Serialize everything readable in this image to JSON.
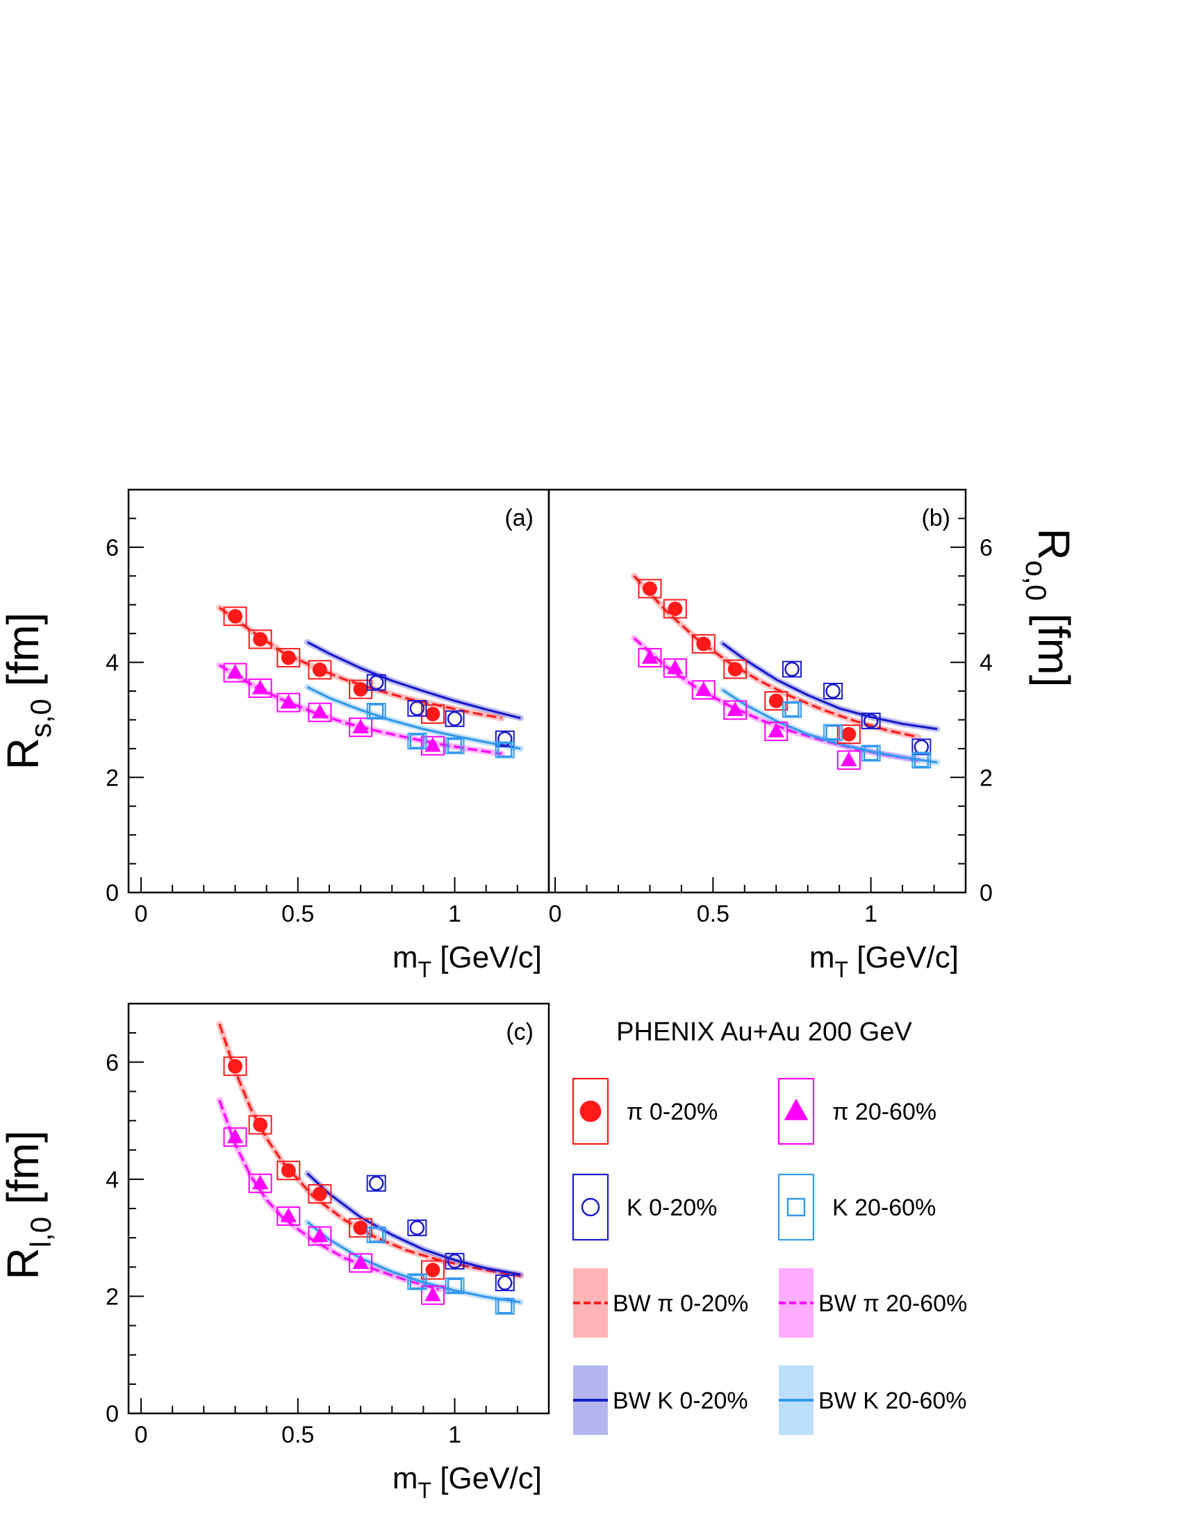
{
  "colors": {
    "pi_central": "#ff1a1a",
    "pi_peripheral": "#ff00ff",
    "k_central": "#1a1acc",
    "k_peripheral": "#3399ee"
  },
  "legend": {
    "header": "PHENIX Au+Au 200 GeV",
    "entries": [
      {
        "label": "π  0-20%",
        "marker": "filled-circle",
        "color": "#ff1a1a"
      },
      {
        "label": "π 20-60%",
        "marker": "filled-triangle",
        "color": "#ff00ff"
      },
      {
        "label": "K  0-20%",
        "marker": "open-circle",
        "color": "#1a1acc"
      },
      {
        "label": "K 20-60%",
        "marker": "open-square",
        "color": "#3399ee"
      },
      {
        "label": "BW  π  0-20%",
        "marker": "band-dashed",
        "color": "#ff1a1a"
      },
      {
        "label": "BW  π 20-60%",
        "marker": "band-dashed",
        "color": "#ff00ff"
      },
      {
        "label": "BW K  0-20%",
        "marker": "band-solid",
        "color": "#1a1acc"
      },
      {
        "label": "BW K 20-60%",
        "marker": "band-solid",
        "color": "#3399ee"
      }
    ]
  },
  "chart_data": [
    {
      "type": "scatter",
      "panel": "(a)",
      "ylabel": "R_{s,0} [fm]",
      "xlabel": "m_T  [GeV/c]",
      "xlim": [
        -0.04,
        1.3
      ],
      "ylim": [
        0,
        7
      ],
      "x_ticks": [
        "0",
        "0.5",
        "1"
      ],
      "y_ticks": [
        "0",
        "2",
        "4",
        "6"
      ],
      "series": [
        {
          "name": "π  0-20%",
          "color": "#ff1a1a",
          "marker": "filled-circle",
          "x": [
            0.3,
            0.38,
            0.47,
            0.57,
            0.7,
            0.93
          ],
          "y": [
            4.8,
            4.4,
            4.08,
            3.87,
            3.53,
            3.1
          ]
        },
        {
          "name": "π 20-60%",
          "color": "#ff00ff",
          "marker": "filled-triangle",
          "x": [
            0.3,
            0.38,
            0.47,
            0.57,
            0.7,
            0.93
          ],
          "y": [
            3.82,
            3.55,
            3.3,
            3.13,
            2.87,
            2.55
          ]
        },
        {
          "name": "K  0-20%",
          "color": "#1a1acc",
          "marker": "open-circle",
          "x": [
            0.75,
            0.88,
            1.0,
            1.16
          ],
          "y": [
            3.65,
            3.2,
            3.02,
            2.67
          ]
        },
        {
          "name": "K 20-60%",
          "color": "#3399ee",
          "marker": "open-square",
          "x": [
            0.75,
            0.88,
            1.0,
            1.16
          ],
          "y": [
            3.15,
            2.63,
            2.55,
            2.48
          ]
        }
      ],
      "curves": [
        {
          "name": "BW  π  0-20%",
          "color": "#ff1a1a",
          "style": "dashed",
          "band": true,
          "x": [
            0.25,
            0.35,
            0.45,
            0.55,
            0.65,
            0.75,
            0.85,
            0.95,
            1.05,
            1.15
          ],
          "y": [
            4.95,
            4.55,
            4.18,
            3.92,
            3.7,
            3.52,
            3.37,
            3.25,
            3.13,
            3.03
          ]
        },
        {
          "name": "BW  π 20-60%",
          "color": "#ff00ff",
          "style": "dashed",
          "band": true,
          "x": [
            0.25,
            0.35,
            0.45,
            0.55,
            0.65,
            0.75,
            0.85,
            0.95,
            1.05,
            1.15
          ],
          "y": [
            3.95,
            3.62,
            3.35,
            3.13,
            2.95,
            2.81,
            2.69,
            2.58,
            2.49,
            2.41
          ]
        },
        {
          "name": "BW K  0-20%",
          "color": "#1a1acc",
          "style": "solid",
          "band": true,
          "x": [
            0.53,
            0.6,
            0.7,
            0.8,
            0.9,
            1.0,
            1.1,
            1.21
          ],
          "y": [
            4.35,
            4.15,
            3.9,
            3.68,
            3.5,
            3.33,
            3.18,
            3.03
          ]
        },
        {
          "name": "BW K 20-60%",
          "color": "#3399ee",
          "style": "solid",
          "band": true,
          "x": [
            0.53,
            0.6,
            0.7,
            0.8,
            0.9,
            1.0,
            1.1,
            1.21
          ],
          "y": [
            3.57,
            3.38,
            3.17,
            2.99,
            2.84,
            2.72,
            2.61,
            2.5
          ]
        }
      ]
    },
    {
      "type": "scatter",
      "panel": "(b)",
      "ylabel": "R_{o,0} [fm]",
      "xlabel": "m_T  [GeV/c]",
      "xlim": [
        -0.02,
        1.3
      ],
      "ylim": [
        0,
        7
      ],
      "x_ticks": [
        "0",
        "0.5",
        "1"
      ],
      "y_ticks": [
        "0",
        "2",
        "4",
        "6"
      ],
      "series": [
        {
          "name": "π  0-20%",
          "color": "#ff1a1a",
          "marker": "filled-circle",
          "x": [
            0.3,
            0.38,
            0.47,
            0.57,
            0.7,
            0.93
          ],
          "y": [
            5.28,
            4.93,
            4.32,
            3.88,
            3.33,
            2.75
          ]
        },
        {
          "name": "π 20-60%",
          "color": "#ff00ff",
          "marker": "filled-triangle",
          "x": [
            0.3,
            0.38,
            0.47,
            0.57,
            0.7,
            0.93
          ],
          "y": [
            4.08,
            3.9,
            3.52,
            3.17,
            2.8,
            2.3
          ]
        },
        {
          "name": "K  0-20%",
          "color": "#1a1acc",
          "marker": "open-circle",
          "x": [
            0.75,
            0.88,
            1.0,
            1.16
          ],
          "y": [
            3.88,
            3.5,
            2.98,
            2.53
          ]
        },
        {
          "name": "K 20-60%",
          "color": "#3399ee",
          "marker": "open-square",
          "x": [
            0.75,
            0.88,
            1.0,
            1.16
          ],
          "y": [
            3.18,
            2.78,
            2.42,
            2.3
          ]
        }
      ],
      "curves": [
        {
          "name": "BW  π  0-20%",
          "color": "#ff1a1a",
          "style": "dashed",
          "band": true,
          "x": [
            0.25,
            0.35,
            0.45,
            0.55,
            0.65,
            0.75,
            0.85,
            0.95,
            1.05,
            1.15
          ],
          "y": [
            5.5,
            4.9,
            4.4,
            4.0,
            3.67,
            3.4,
            3.17,
            2.98,
            2.82,
            2.7
          ]
        },
        {
          "name": "BW  π 20-60%",
          "color": "#ff00ff",
          "style": "dashed",
          "band": true,
          "x": [
            0.25,
            0.35,
            0.45,
            0.55,
            0.65,
            0.75,
            0.85,
            0.95,
            1.05,
            1.15
          ],
          "y": [
            4.42,
            3.93,
            3.55,
            3.25,
            3.0,
            2.8,
            2.64,
            2.5,
            2.39,
            2.3
          ]
        },
        {
          "name": "BW K  0-20%",
          "color": "#1a1acc",
          "style": "solid",
          "band": true,
          "x": [
            0.53,
            0.6,
            0.7,
            0.8,
            0.9,
            1.0,
            1.1,
            1.21
          ],
          "y": [
            4.33,
            4.05,
            3.7,
            3.43,
            3.2,
            3.05,
            2.93,
            2.84
          ]
        },
        {
          "name": "BW K 20-60%",
          "color": "#3399ee",
          "style": "solid",
          "band": true,
          "x": [
            0.53,
            0.6,
            0.7,
            0.8,
            0.9,
            1.0,
            1.1,
            1.21
          ],
          "y": [
            3.52,
            3.27,
            2.98,
            2.75,
            2.58,
            2.45,
            2.35,
            2.26
          ]
        }
      ]
    },
    {
      "type": "scatter",
      "panel": "(c)",
      "ylabel": "R_{l,0} [fm]",
      "xlabel": "m_T  [GeV/c]",
      "xlim": [
        -0.04,
        1.3
      ],
      "ylim": [
        0,
        7
      ],
      "x_ticks": [
        "0",
        "0.5",
        "1"
      ],
      "y_ticks": [
        "0",
        "2",
        "4",
        "6"
      ],
      "series": [
        {
          "name": "π  0-20%",
          "color": "#ff1a1a",
          "marker": "filled-circle",
          "x": [
            0.3,
            0.38,
            0.47,
            0.57,
            0.7,
            0.93
          ],
          "y": [
            5.93,
            4.93,
            4.15,
            3.75,
            3.17,
            2.45
          ]
        },
        {
          "name": "π 20-60%",
          "color": "#ff00ff",
          "marker": "filled-triangle",
          "x": [
            0.3,
            0.38,
            0.47,
            0.57,
            0.7,
            0.93
          ],
          "y": [
            4.72,
            3.93,
            3.37,
            3.03,
            2.57,
            2.02
          ]
        },
        {
          "name": "K  0-20%",
          "color": "#1a1acc",
          "marker": "open-circle",
          "x": [
            0.75,
            0.88,
            1.0,
            1.16
          ],
          "y": [
            3.93,
            3.17,
            2.6,
            2.23
          ]
        },
        {
          "name": "K 20-60%",
          "color": "#3399ee",
          "marker": "open-square",
          "x": [
            0.75,
            0.88,
            1.0,
            1.16
          ],
          "y": [
            3.05,
            2.25,
            2.18,
            1.83
          ]
        }
      ],
      "curves": [
        {
          "name": "BW  π  0-20%",
          "color": "#ff1a1a",
          "style": "dashed",
          "band": true,
          "x": [
            0.25,
            0.3,
            0.35,
            0.4,
            0.45,
            0.55,
            0.65,
            0.75,
            0.85,
            0.95,
            1.05,
            1.15,
            1.21
          ],
          "y": [
            6.65,
            5.85,
            5.2,
            4.7,
            4.3,
            3.7,
            3.3,
            3.0,
            2.78,
            2.62,
            2.5,
            2.4,
            2.35
          ]
        },
        {
          "name": "BW  π 20-60%",
          "color": "#ff00ff",
          "style": "dashed",
          "band": true,
          "x": [
            0.25,
            0.3,
            0.35,
            0.4,
            0.45,
            0.55,
            0.65,
            0.75,
            0.85,
            0.95
          ],
          "y": [
            5.35,
            4.6,
            4.05,
            3.65,
            3.35,
            2.95,
            2.65,
            2.45,
            2.27,
            2.12
          ]
        },
        {
          "name": "BW K  0-20%",
          "color": "#1a1acc",
          "style": "solid",
          "band": true,
          "x": [
            0.53,
            0.6,
            0.7,
            0.8,
            0.9,
            1.0,
            1.1,
            1.21
          ],
          "y": [
            4.1,
            3.75,
            3.35,
            3.05,
            2.8,
            2.62,
            2.48,
            2.37
          ]
        },
        {
          "name": "BW K 20-60%",
          "color": "#3399ee",
          "style": "solid",
          "band": true,
          "x": [
            0.53,
            0.6,
            0.7,
            0.8,
            0.9,
            1.0,
            1.1,
            1.21
          ],
          "y": [
            3.27,
            2.97,
            2.65,
            2.42,
            2.24,
            2.1,
            1.99,
            1.9
          ]
        }
      ]
    }
  ]
}
